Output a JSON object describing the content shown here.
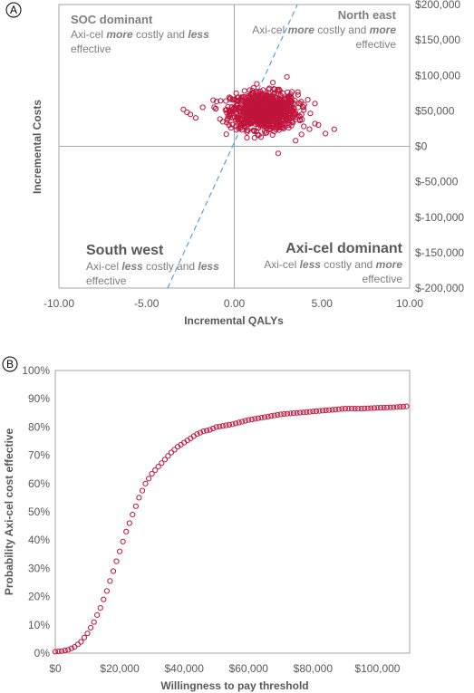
{
  "panel_labels": {
    "a": "A",
    "b": "B"
  },
  "colors": {
    "points": "#c0143c",
    "threshold_line": "#4a9ad4",
    "axis": "#a6a6a6",
    "text": "#595959"
  },
  "quadrants": {
    "nw": {
      "title": "SOC dominant",
      "line1_pre": "Axi-cel ",
      "line1_em1": "more",
      "line1_mid": " costly and ",
      "line1_em2": "less",
      "line2": "effective"
    },
    "ne": {
      "title": "North east",
      "line1_pre": "Axi-cel ",
      "line1_em1": "more",
      "line1_mid": " costly and ",
      "line1_em2": "more",
      "line2": "effective"
    },
    "sw": {
      "title": "South west",
      "line1_pre": "Axi-cel ",
      "line1_em1": "less",
      "line1_mid": " costly and ",
      "line1_em2": "less",
      "line2": "effective"
    },
    "se": {
      "title": "Axi-cel dominant",
      "line1_pre": "Axi-cel ",
      "line1_em1": "less",
      "line1_mid": " costly and ",
      "line1_em2": "more",
      "line2": "effective"
    }
  },
  "chart_data": [
    {
      "type": "scatter",
      "xlabel": "Incremental QALYs",
      "ylabel": "Incremental Costs",
      "xlim": [
        -10,
        10
      ],
      "ylim": [
        -200000,
        200000
      ],
      "xticks": [
        -10,
        -5,
        0,
        5,
        10
      ],
      "xtick_labels": [
        "-10.00",
        "-5.00",
        "0.00",
        "5.00",
        "10.00"
      ],
      "yticks": [
        200000,
        150000,
        100000,
        50000,
        0,
        -50000,
        -100000,
        -150000,
        -200000
      ],
      "ytick_labels": [
        "$200,000",
        "$150,000",
        "$100,000",
        "$50,000",
        "$0",
        "$-50,000",
        "$-100,000",
        "$-150,000",
        "$-200,000"
      ],
      "threshold_line": {
        "style": "dashed",
        "points": [
          [
            -3.8,
            -200000
          ],
          [
            3.6,
            200000
          ]
        ]
      },
      "cloud": {
        "x_mean": 1.7,
        "x_sd": 0.95,
        "y_mean": 50000,
        "y_sd": 13000,
        "n": 1000
      },
      "points": [
        [
          -2.7,
          48000
        ],
        [
          -2.5,
          45000
        ],
        [
          -2.9,
          52000
        ],
        [
          -2.2,
          40000
        ],
        [
          -1.8,
          55000
        ],
        [
          5.7,
          24000
        ],
        [
          5.2,
          18000
        ],
        [
          4.8,
          30000
        ],
        [
          3.0,
          98000
        ],
        [
          2.2,
          90000
        ],
        [
          -0.3,
          30000
        ],
        [
          2.5,
          -10000
        ],
        [
          3.5,
          8000
        ],
        [
          4.6,
          32000
        ]
      ]
    },
    {
      "type": "line",
      "xlabel": "Willingness to pay threshold",
      "ylabel": "Probability Axi-cel cost effective",
      "xlim": [
        0,
        110000
      ],
      "ylim": [
        0,
        1
      ],
      "xticks": [
        0,
        20000,
        40000,
        60000,
        80000,
        100000
      ],
      "xtick_labels": [
        "$0",
        "$20,000",
        "$40,000",
        "$60,000",
        "$80,000",
        "$100,000"
      ],
      "yticks": [
        0,
        0.1,
        0.2,
        0.3,
        0.4,
        0.5,
        0.6,
        0.7,
        0.8,
        0.9,
        1.0
      ],
      "ytick_labels": [
        "0%",
        "10%",
        "20%",
        "30%",
        "40%",
        "50%",
        "60%",
        "70%",
        "80%",
        "90%",
        "100%"
      ],
      "marker": "circle-open",
      "x": [
        0,
        2000,
        4000,
        6000,
        8000,
        10000,
        12000,
        14000,
        16000,
        18000,
        20000,
        22000,
        24000,
        26000,
        28000,
        30000,
        32000,
        34000,
        36000,
        38000,
        40000,
        42000,
        44000,
        46000,
        48000,
        50000,
        55000,
        60000,
        65000,
        70000,
        75000,
        80000,
        85000,
        90000,
        95000,
        100000,
        105000,
        109000
      ],
      "y": [
        0.005,
        0.007,
        0.012,
        0.022,
        0.04,
        0.07,
        0.11,
        0.16,
        0.22,
        0.29,
        0.36,
        0.43,
        0.49,
        0.55,
        0.6,
        0.635,
        0.66,
        0.685,
        0.71,
        0.73,
        0.745,
        0.76,
        0.775,
        0.785,
        0.79,
        0.8,
        0.81,
        0.825,
        0.835,
        0.845,
        0.85,
        0.855,
        0.86,
        0.865,
        0.865,
        0.868,
        0.87,
        0.873
      ]
    }
  ]
}
